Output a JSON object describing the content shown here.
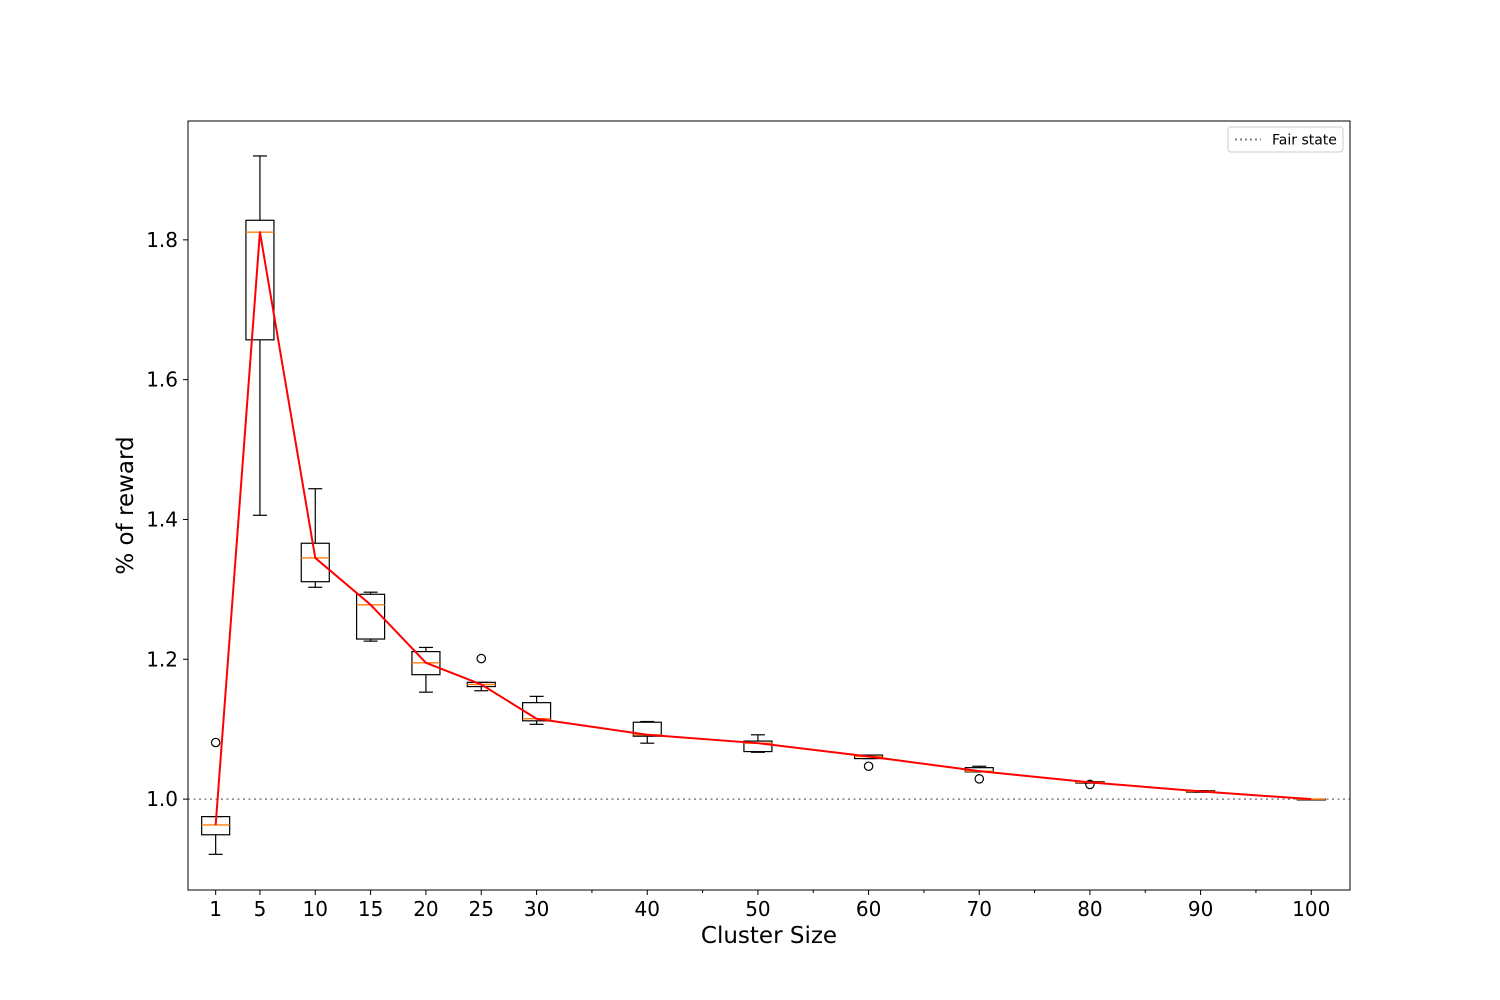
{
  "chart_data": {
    "type": "box",
    "xlabel": "Cluster Size",
    "ylabel": "% of reward",
    "xlim": [
      -1.5,
      103.5
    ],
    "ylim": [
      0.87,
      1.97
    ],
    "x_ticks": [
      1,
      5,
      10,
      15,
      20,
      25,
      30,
      40,
      50,
      60,
      70,
      80,
      90,
      100
    ],
    "x_tick_labels": [
      "1",
      "5",
      "10",
      "15",
      "20",
      "25",
      "30",
      "40",
      "50",
      "60",
      "70",
      "80",
      "90",
      "100"
    ],
    "x_minor_ticks": [
      35,
      45,
      55,
      65,
      75,
      85,
      95
    ],
    "y_ticks": [
      1.0,
      1.2,
      1.4,
      1.6,
      1.8
    ],
    "y_tick_labels": [
      "1.0",
      "1.2",
      "1.4",
      "1.6",
      "1.8"
    ],
    "grid": false,
    "legend": {
      "position": "top-right",
      "entries": [
        "Fair state"
      ]
    },
    "reference_line": {
      "name": "Fair state",
      "y": 1.0,
      "style": "dotted",
      "color": "#808080"
    },
    "boxes": [
      {
        "x": 1,
        "whislo": 0.921,
        "q1": 0.949,
        "med": 0.963,
        "q3": 0.975,
        "whishi": 0.975,
        "fliers": [
          1.081
        ]
      },
      {
        "x": 5,
        "whislo": 1.406,
        "q1": 1.657,
        "med": 1.811,
        "q3": 1.828,
        "whishi": 1.92,
        "fliers": []
      },
      {
        "x": 10,
        "whislo": 1.303,
        "q1": 1.311,
        "med": 1.345,
        "q3": 1.366,
        "whishi": 1.444,
        "fliers": []
      },
      {
        "x": 15,
        "whislo": 1.226,
        "q1": 1.229,
        "med": 1.278,
        "q3": 1.293,
        "whishi": 1.296,
        "fliers": []
      },
      {
        "x": 20,
        "whislo": 1.153,
        "q1": 1.178,
        "med": 1.195,
        "q3": 1.211,
        "whishi": 1.217,
        "fliers": []
      },
      {
        "x": 25,
        "whislo": 1.155,
        "q1": 1.161,
        "med": 1.164,
        "q3": 1.167,
        "whishi": 1.167,
        "fliers": [
          1.201
        ]
      },
      {
        "x": 30,
        "whislo": 1.107,
        "q1": 1.112,
        "med": 1.115,
        "q3": 1.138,
        "whishi": 1.147,
        "fliers": []
      },
      {
        "x": 40,
        "whislo": 1.08,
        "q1": 1.09,
        "med": 1.092,
        "q3": 1.11,
        "whishi": 1.111,
        "fliers": []
      },
      {
        "x": 50,
        "whislo": 1.067,
        "q1": 1.068,
        "med": 1.08,
        "q3": 1.083,
        "whishi": 1.092,
        "fliers": []
      },
      {
        "x": 60,
        "whislo": 1.058,
        "q1": 1.058,
        "med": 1.061,
        "q3": 1.063,
        "whishi": 1.063,
        "fliers": [
          1.047
        ]
      },
      {
        "x": 70,
        "whislo": 1.039,
        "q1": 1.039,
        "med": 1.04,
        "q3": 1.045,
        "whishi": 1.047,
        "fliers": [
          1.029
        ]
      },
      {
        "x": 80,
        "whislo": 1.023,
        "q1": 1.023,
        "med": 1.024,
        "q3": 1.025,
        "whishi": 1.025,
        "fliers": [
          1.021
        ]
      },
      {
        "x": 90,
        "whislo": 1.01,
        "q1": 1.01,
        "med": 1.011,
        "q3": 1.012,
        "whishi": 1.012,
        "fliers": []
      },
      {
        "x": 100,
        "whislo": 1.0,
        "q1": 1.0,
        "med": 1.0,
        "q3": 1.0,
        "whishi": 1.0,
        "fliers": []
      }
    ],
    "series": [
      {
        "type": "line",
        "color": "#ff0000",
        "x": [
          1,
          5,
          10,
          15,
          20,
          25,
          30,
          40,
          50,
          60,
          70,
          80,
          90,
          100
        ],
        "values": [
          0.963,
          1.811,
          1.345,
          1.278,
          1.195,
          1.164,
          1.115,
          1.092,
          1.08,
          1.061,
          1.04,
          1.024,
          1.011,
          1.0
        ]
      }
    ],
    "colors": {
      "box": "#000000",
      "median": "#ff7f0e",
      "line": "#ff0000",
      "reference": "#808080"
    }
  }
}
